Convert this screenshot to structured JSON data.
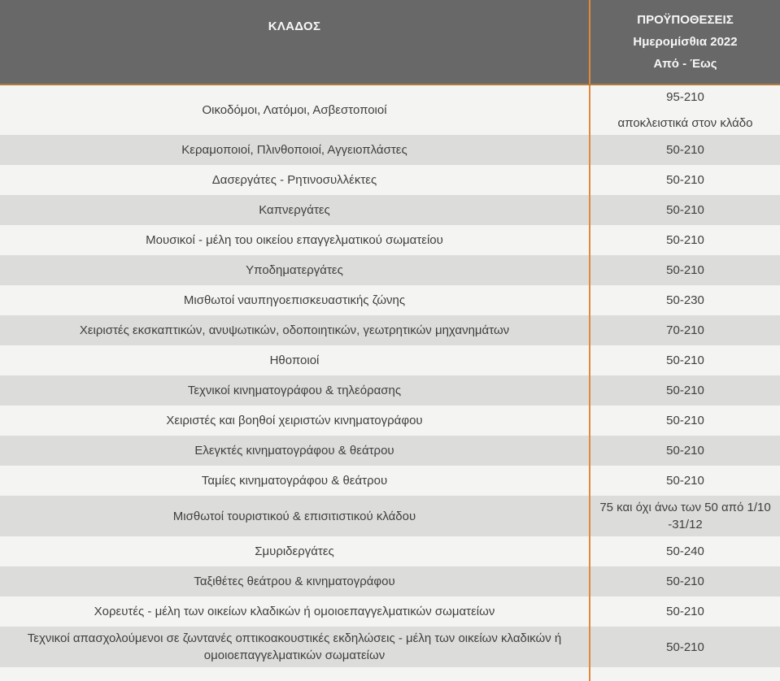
{
  "colors": {
    "header_bg": "#696868",
    "header_text": "#f7f7f7",
    "divider_orange": "#e0893c",
    "header_rule": "#b27a3f",
    "row_light": "#f4f4f2",
    "row_dark": "#dcdcdb",
    "row_text": "#3f3f3f"
  },
  "table": {
    "header": {
      "sector_label": "ΚΛΑΔΟΣ",
      "conditions_lines": [
        "ΠΡΟΫΠΟΘΕΣΕΙΣ",
        "Ημερομίσθια 2022",
        "Από - Έως"
      ]
    },
    "rows": [
      {
        "sector": "Οικοδόμοι, Λατόμοι, Ασβεστοποιοί",
        "wages": [
          "95-210",
          "αποκλειστικά στον κλάδο"
        ]
      },
      {
        "sector": "Κεραμοποιοί, Πλινθοποιοί, Αγγειοπλάστες",
        "wages": [
          "50-210"
        ]
      },
      {
        "sector": "Δασεργάτες - Ρητινοσυλλέκτες",
        "wages": [
          "50-210"
        ]
      },
      {
        "sector": "Καπνεργάτες",
        "wages": [
          "50-210"
        ]
      },
      {
        "sector": "Μουσικοί - μέλη του οικείου επαγγελματικού σωματείου",
        "wages": [
          "50-210"
        ]
      },
      {
        "sector": "Υποδηματεργάτες",
        "wages": [
          "50-210"
        ]
      },
      {
        "sector": "Μισθωτοί ναυπηγοεπισκευαστικής ζώνης",
        "wages": [
          "50-230"
        ]
      },
      {
        "sector": "Χειριστές εκσκαπτικών, ανυψωτικών, οδοποιητικών, γεωτρητικών μηχανημάτων",
        "wages": [
          "70-210"
        ]
      },
      {
        "sector": "Ηθοποιοί",
        "wages": [
          "50-210"
        ]
      },
      {
        "sector": "Τεχνικοί κινηματογράφου & τηλεόρασης",
        "wages": [
          "50-210"
        ]
      },
      {
        "sector": "Χειριστές και βοηθοί χειριστών κινηματογράφου",
        "wages": [
          "50-210"
        ]
      },
      {
        "sector": "Ελεγκτές κινηματογράφου & θεάτρου",
        "wages": [
          "50-210"
        ]
      },
      {
        "sector": "Ταμίες κινηματογράφου & θεάτρου",
        "wages": [
          "50-210"
        ]
      },
      {
        "sector": "Μισθωτοί τουριστικού & επισιτιστικού κλάδου",
        "wages": [
          "75 και όχι άνω των 50 από 1/10 -31/12"
        ]
      },
      {
        "sector": "Σμυριδεργάτες",
        "wages": [
          "50-240"
        ]
      },
      {
        "sector": "Ταξιθέτες θεάτρου & κινηματογράφου",
        "wages": [
          "50-210"
        ]
      },
      {
        "sector": "Χορευτές - μέλη των οικείων κλαδικών ή ομοιοεπαγγελματικών σωματείων",
        "wages": [
          "50-210"
        ]
      },
      {
        "sector": "Τεχνικοί απασχολούμενοι σε ζωντανές οπτικοακουστικές εκδηλώσεις - μέλη των οικείων κλαδικών ή ομοιοεπαγγελματικών σωματείων",
        "wages": [
          "50-210"
        ]
      }
    ]
  }
}
